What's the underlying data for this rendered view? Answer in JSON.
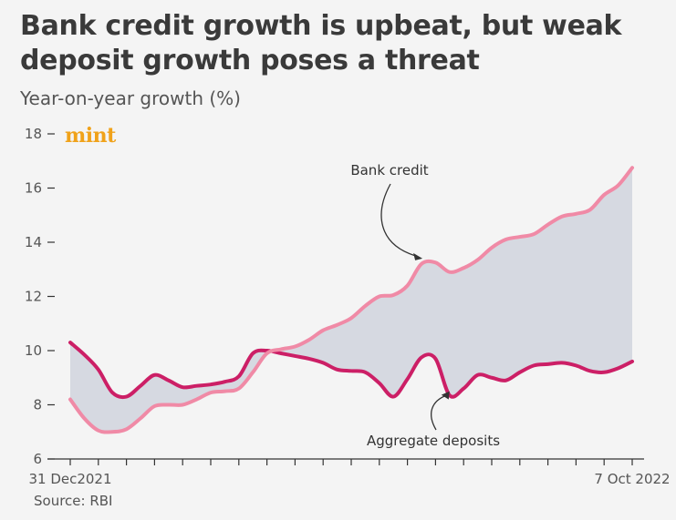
{
  "header": {
    "title": "Bank credit growth is upbeat, but weak deposit growth poses a threat",
    "subtitle": "Year-on-year growth (%)"
  },
  "logo_text": "mint",
  "source": "Source: RBI",
  "colors": {
    "bank_credit": "#f08aa6",
    "aggregate_deposits": "#cc1f66",
    "fill": "#d6d9e1",
    "axis": "#333333"
  },
  "chart_data": {
    "type": "line",
    "title": "Bank credit growth is upbeat, but weak deposit growth poses a threat",
    "ylabel": "Year-on-year growth (%)",
    "ylim": [
      6,
      18
    ],
    "yticks": [
      6,
      8,
      10,
      12,
      14,
      16,
      18
    ],
    "xlim": [
      0,
      20
    ],
    "xtick_labels": [
      {
        "x": 0,
        "label": "31 Dec2021"
      },
      {
        "x": 20,
        "label": "7 Oct 2022"
      }
    ],
    "area_between_series": true,
    "grid": false,
    "series": [
      {
        "name": "Bank credit",
        "x": [
          0,
          0.5,
          1,
          1.5,
          2,
          2.5,
          3,
          3.5,
          4,
          4.5,
          5,
          5.5,
          6,
          6.5,
          7,
          7.5,
          8,
          8.5,
          9,
          9.5,
          10,
          10.5,
          11,
          11.5,
          12,
          12.5,
          13,
          13.5,
          14,
          14.5,
          15,
          15.5,
          16,
          16.5,
          17,
          17.5,
          18,
          18.5,
          19,
          19.5,
          20
        ],
        "values": [
          8.2,
          7.5,
          7.05,
          7.0,
          7.1,
          7.5,
          7.95,
          8.0,
          8.0,
          8.2,
          8.45,
          8.5,
          8.6,
          9.2,
          9.9,
          10.05,
          10.15,
          10.4,
          10.75,
          10.95,
          11.2,
          11.65,
          12.0,
          12.05,
          12.4,
          13.2,
          13.25,
          12.9,
          13.05,
          13.35,
          13.8,
          14.1,
          14.2,
          14.3,
          14.65,
          14.95,
          15.05,
          15.2,
          15.75,
          16.1,
          16.75
        ]
      },
      {
        "name": "Aggregate deposits",
        "x": [
          0,
          0.5,
          1,
          1.5,
          2,
          2.5,
          3,
          3.5,
          4,
          4.5,
          5,
          5.5,
          6,
          6.5,
          7,
          7.5,
          8,
          8.5,
          9,
          9.5,
          10,
          10.5,
          11,
          11.5,
          12,
          12.5,
          13,
          13.5,
          14,
          14.5,
          15,
          15.5,
          16,
          16.5,
          17,
          17.5,
          18,
          18.5,
          19,
          19.5,
          20
        ],
        "values": [
          10.3,
          9.85,
          9.3,
          8.45,
          8.3,
          8.7,
          9.1,
          8.9,
          8.65,
          8.7,
          8.75,
          8.85,
          9.05,
          9.9,
          10.0,
          9.9,
          9.8,
          9.7,
          9.55,
          9.3,
          9.25,
          9.2,
          8.8,
          8.3,
          8.95,
          9.75,
          9.7,
          8.35,
          8.6,
          9.1,
          9.0,
          8.9,
          9.2,
          9.45,
          9.5,
          9.55,
          9.45,
          9.25,
          9.2,
          9.35,
          9.6
        ]
      }
    ],
    "annotations": [
      {
        "text": "Bank credit",
        "target_series": "Bank credit",
        "target_x": 12.6
      },
      {
        "text": "Aggregate deposits",
        "target_series": "Aggregate deposits",
        "target_x": 13.5
      }
    ]
  }
}
